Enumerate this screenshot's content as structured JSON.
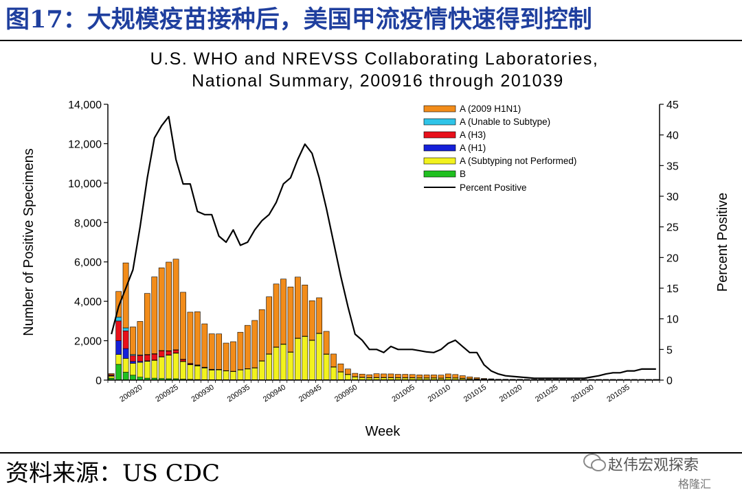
{
  "header": {
    "title": "图17：大规模疫苗接种后，美国甲流疫情快速得到控制"
  },
  "footer": {
    "source": "资料来源：US CDC"
  },
  "watermark": {
    "text": "赵伟宏观探索",
    "sub": "格隆汇"
  },
  "colors": {
    "h1n1": "#f28c1a",
    "unable": "#2fc4e8",
    "h3": "#e8101a",
    "h1": "#1520d8",
    "not_performed": "#f2f21e",
    "b": "#20c020",
    "line": "#000000",
    "title": "#1f3f9e"
  },
  "chart_data": {
    "type": "bar",
    "stacked": true,
    "title": "U.S. WHO and NREVSS Collaborating Laboratories,",
    "subtitle": "National Summary, 200916 through 201039",
    "xlabel": "Week",
    "ylabel": "Number of Positive Specimens",
    "y2label": "Percent Positive",
    "ylim": [
      0,
      14000
    ],
    "y2lim": [
      0,
      45
    ],
    "yticks": [
      "0",
      "2,000",
      "4,000",
      "6,000",
      "8,000",
      "10,000",
      "12,000",
      "14,000"
    ],
    "y2ticks": [
      "0",
      "5",
      "10",
      "15",
      "20",
      "25",
      "30",
      "35",
      "40",
      "45"
    ],
    "xticks": [
      "200920",
      "200925",
      "200930",
      "200935",
      "200940",
      "200945",
      "200950",
      "201005",
      "201010",
      "201015",
      "201020",
      "201025",
      "201030",
      "201035"
    ],
    "legend_position": "top-right",
    "x": [
      "200916",
      "200917",
      "200918",
      "200919",
      "200920",
      "200921",
      "200922",
      "200923",
      "200924",
      "200925",
      "200926",
      "200927",
      "200928",
      "200929",
      "200930",
      "200931",
      "200932",
      "200933",
      "200934",
      "200935",
      "200936",
      "200937",
      "200938",
      "200939",
      "200940",
      "200941",
      "200942",
      "200943",
      "200944",
      "200945",
      "200946",
      "200947",
      "200948",
      "200949",
      "200950",
      "200951",
      "200952",
      "200953",
      "201001",
      "201002",
      "201003",
      "201004",
      "201005",
      "201006",
      "201007",
      "201008",
      "201009",
      "201010",
      "201011",
      "201012",
      "201013",
      "201014",
      "201015",
      "201016",
      "201017",
      "201018",
      "201019",
      "201020",
      "201021",
      "201022",
      "201023",
      "201024",
      "201025",
      "201026",
      "201027",
      "201028",
      "201029",
      "201030",
      "201031",
      "201032",
      "201033",
      "201034",
      "201035",
      "201036",
      "201037",
      "201038",
      "201039"
    ],
    "series": [
      {
        "name": "A (2009 H1N1)",
        "values": [
          50,
          1300,
          3300,
          1400,
          1700,
          3100,
          3900,
          4200,
          4500,
          4600,
          3400,
          2600,
          2700,
          2200,
          1800,
          1800,
          1400,
          1500,
          1900,
          2200,
          2400,
          2600,
          2900,
          3200,
          3300,
          3300,
          3100,
          2600,
          2000,
          1800,
          1150,
          650,
          400,
          270,
          170,
          160,
          150,
          190,
          180,
          180,
          170,
          170,
          160,
          150,
          150,
          150,
          150,
          190,
          170,
          130,
          90,
          60,
          30,
          20,
          10,
          10,
          8,
          8,
          5,
          5,
          5,
          5,
          5,
          5,
          5,
          5,
          5,
          5,
          5,
          5,
          5,
          5,
          5,
          5,
          5,
          5,
          5
        ]
      },
      {
        "name": "A (Unable to Subtype)",
        "values": [
          0,
          200,
          150,
          50,
          30,
          20,
          20,
          10,
          10,
          10,
          5,
          5,
          5,
          5,
          5,
          5,
          0,
          0,
          0,
          0,
          0,
          0,
          0,
          0,
          0,
          0,
          0,
          0,
          0,
          0,
          0,
          0,
          0,
          0,
          0,
          0,
          0,
          0,
          0,
          0,
          0,
          0,
          0,
          0,
          0,
          0,
          0,
          0,
          0,
          0,
          0,
          0,
          0,
          0,
          0,
          0,
          0,
          0,
          0,
          0,
          0,
          0,
          0,
          0,
          0,
          0,
          0,
          0,
          0,
          0,
          0,
          0,
          0,
          0,
          0,
          0,
          0
        ]
      },
      {
        "name": "A (H3)",
        "values": [
          50,
          1000,
          900,
          300,
          300,
          300,
          300,
          300,
          200,
          150,
          100,
          50,
          30,
          20,
          20,
          20,
          10,
          10,
          10,
          10,
          10,
          10,
          10,
          10,
          10,
          10,
          10,
          10,
          10,
          10,
          5,
          5,
          5,
          5,
          5,
          5,
          5,
          5,
          5,
          5,
          5,
          5,
          5,
          5,
          5,
          5,
          5,
          5,
          5,
          5,
          5,
          5,
          5,
          5,
          5,
          5,
          5,
          5,
          5,
          5,
          5,
          5,
          5,
          5,
          5,
          5,
          5,
          5,
          5,
          5,
          5,
          5,
          5,
          5,
          5,
          5,
          5
        ]
      },
      {
        "name": "A (H1)",
        "values": [
          30,
          700,
          500,
          100,
          50,
          30,
          20,
          10,
          10,
          10,
          5,
          5,
          5,
          5,
          5,
          0,
          0,
          0,
          0,
          0,
          0,
          0,
          0,
          0,
          0,
          0,
          0,
          0,
          0,
          0,
          0,
          0,
          0,
          0,
          0,
          0,
          0,
          0,
          0,
          0,
          0,
          0,
          0,
          0,
          0,
          0,
          0,
          0,
          0,
          0,
          0,
          0,
          0,
          0,
          0,
          0,
          0,
          0,
          0,
          0,
          0,
          0,
          0,
          0,
          0,
          0,
          0,
          0,
          0,
          0,
          0,
          0,
          0,
          0,
          0,
          0,
          0
        ]
      },
      {
        "name": "A (Subtyping not Performed)",
        "values": [
          100,
          500,
          700,
          600,
          750,
          850,
          900,
          1100,
          1200,
          1300,
          900,
          750,
          700,
          600,
          500,
          500,
          450,
          420,
          500,
          550,
          600,
          950,
          1300,
          1650,
          1800,
          1400,
          2100,
          2200,
          2000,
          2350,
          1300,
          650,
          400,
          270,
          150,
          120,
          100,
          110,
          110,
          110,
          100,
          100,
          100,
          90,
          90,
          90,
          80,
          100,
          90,
          70,
          50,
          40,
          30,
          20,
          10,
          10,
          8,
          8,
          5,
          5,
          5,
          5,
          5,
          5,
          5,
          5,
          5,
          5,
          5,
          5,
          5,
          5,
          5,
          5,
          5,
          5,
          5
        ]
      },
      {
        "name": "B",
        "values": [
          100,
          800,
          400,
          250,
          150,
          100,
          100,
          80,
          70,
          70,
          50,
          40,
          30,
          25,
          20,
          20,
          20,
          20,
          20,
          20,
          20,
          20,
          20,
          20,
          20,
          20,
          20,
          20,
          20,
          20,
          20,
          20,
          20,
          20,
          20,
          20,
          20,
          20,
          20,
          20,
          20,
          20,
          20,
          20,
          20,
          20,
          20,
          20,
          20,
          20,
          20,
          20,
          20,
          20,
          20,
          20,
          20,
          20,
          20,
          20,
          20,
          20,
          20,
          20,
          20,
          20,
          20,
          20,
          20,
          20,
          20,
          20,
          20,
          20,
          20,
          20,
          20
        ]
      }
    ],
    "line": {
      "name": "Percent Positive",
      "values": [
        7.5,
        12,
        15,
        18,
        25,
        33,
        39.5,
        41.5,
        43,
        36,
        32,
        32,
        27.5,
        27,
        27,
        23.5,
        22.5,
        24.5,
        22,
        22.5,
        24.5,
        26,
        27,
        29,
        32,
        33,
        36,
        38.5,
        37,
        33,
        28,
        22.5,
        17,
        12,
        7.5,
        6.5,
        5,
        5,
        4.5,
        5.5,
        5,
        5,
        5,
        4.8,
        4.6,
        4.5,
        5,
        6,
        6.5,
        5.5,
        4.5,
        4.5,
        2.5,
        1.5,
        1,
        0.7,
        0.6,
        0.5,
        0.4,
        0.3,
        0.3,
        0.3,
        0.3,
        0.3,
        0.3,
        0.3,
        0.3,
        0.5,
        0.7,
        1,
        1.2,
        1.2,
        1.5,
        1.5,
        1.8,
        1.8,
        1.8
      ]
    }
  }
}
